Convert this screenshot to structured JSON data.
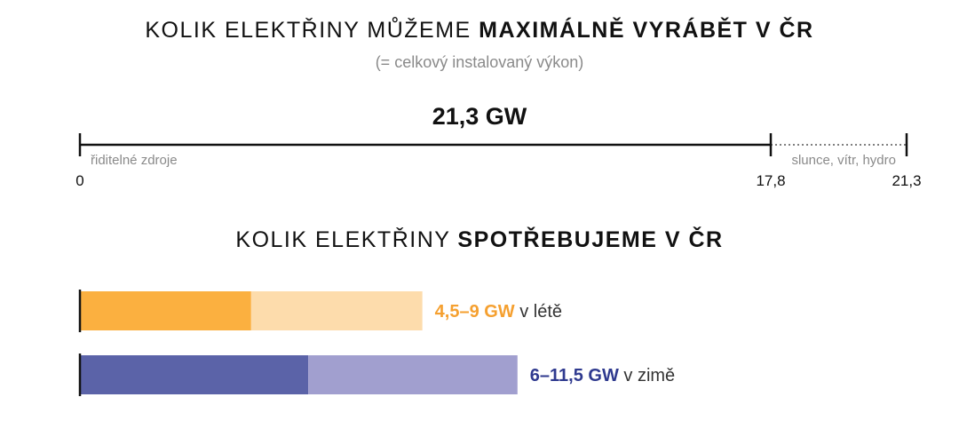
{
  "header": {
    "title1_normal": "KOLIK ELEKTŘINY MŮŽEME ",
    "title1_bold": "MAXIMÁLNĚ VYRÁBĚT V ČR",
    "subtitle": "(= celkový instalovaný výkon)",
    "title2_normal": "KOLIK ELEKTŘINY ",
    "title2_bold": "SPOTŘEBUJEME V ČR"
  },
  "chart_data": [
    {
      "type": "bar",
      "total_label": "21,3 GW",
      "segments": [
        {
          "label": "řiditelné zdroje",
          "from": 0,
          "to": 17.8,
          "style": "solid"
        },
        {
          "label": "slunce, vítr, hydro",
          "from": 17.8,
          "to": 21.3,
          "style": "dotted"
        }
      ],
      "ticks": [
        {
          "value": 0,
          "label": "0"
        },
        {
          "value": 17.8,
          "label": "17,8"
        },
        {
          "value": 21.3,
          "label": "21,3"
        }
      ],
      "xlim": [
        0,
        21.3
      ]
    },
    {
      "type": "bar",
      "unit": "GW",
      "xlim": [
        0,
        21.3
      ],
      "series": [
        {
          "range_label": "4,5–9 GW",
          "season_label": " v létě",
          "min": 4.5,
          "max": 9,
          "color_dark": "#fbb040",
          "color_light": "#fddcac",
          "text_color": "#f5a030"
        },
        {
          "range_label": "6–11,5 GW",
          "season_label": " v zimě",
          "min": 6,
          "max": 11.5,
          "color_dark": "#5b63a8",
          "color_light": "#a19fcf",
          "text_color": "#2f3a8f"
        }
      ]
    }
  ]
}
